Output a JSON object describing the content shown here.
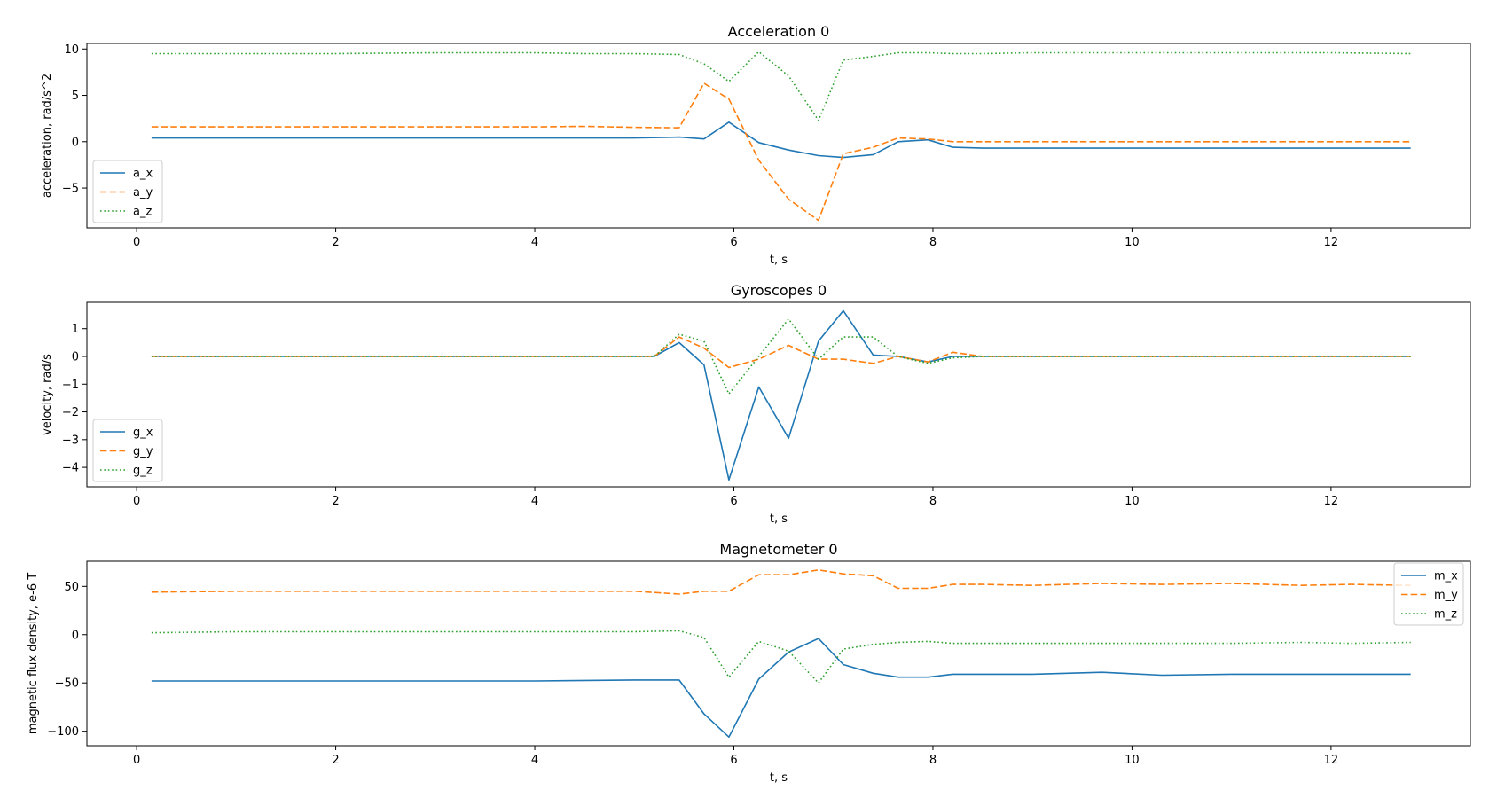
{
  "chart_data": [
    {
      "type": "line",
      "title": "Acceleration 0",
      "xlabel": "t, s",
      "ylabel": "acceleration, rad/s^2",
      "xlim": [
        -0.5,
        13.4
      ],
      "ylim": [
        -9.3,
        10.6
      ],
      "xticks": [
        0,
        2,
        4,
        6,
        8,
        10,
        12
      ],
      "yticks": [
        -5,
        0,
        5,
        10
      ],
      "legend": "lower-left",
      "series": [
        {
          "name": "a_x",
          "color": "#1f77b4",
          "dash": "solid",
          "x": [
            0.15,
            1.0,
            2.0,
            3.0,
            4.0,
            4.5,
            5.0,
            5.45,
            5.7,
            5.95,
            6.25,
            6.55,
            6.85,
            7.1,
            7.4,
            7.65,
            7.95,
            8.2,
            8.5,
            9.0,
            9.5,
            10.0,
            11.0,
            12.0,
            12.8
          ],
          "y": [
            0.4,
            0.4,
            0.4,
            0.4,
            0.4,
            0.4,
            0.4,
            0.5,
            0.3,
            2.1,
            -0.1,
            -0.9,
            -1.5,
            -1.7,
            -1.4,
            0.0,
            0.2,
            -0.6,
            -0.7,
            -0.7,
            -0.7,
            -0.7,
            -0.7,
            -0.7,
            -0.7
          ]
        },
        {
          "name": "a_y",
          "color": "#ff7f0e",
          "dash": "dashed",
          "x": [
            0.15,
            1.0,
            2.0,
            3.0,
            4.0,
            4.5,
            5.0,
            5.45,
            5.7,
            5.95,
            6.25,
            6.55,
            6.85,
            7.1,
            7.4,
            7.65,
            7.95,
            8.2,
            8.5,
            9.0,
            9.5,
            10.0,
            11.0,
            12.0,
            12.8
          ],
          "y": [
            1.6,
            1.6,
            1.6,
            1.6,
            1.6,
            1.65,
            1.55,
            1.5,
            6.3,
            4.6,
            -2.0,
            -6.2,
            -8.5,
            -1.3,
            -0.6,
            0.4,
            0.3,
            0.0,
            0.0,
            0.0,
            0.0,
            0.0,
            0.0,
            0.0,
            0.0
          ]
        },
        {
          "name": "a_z",
          "color": "#2ca02c",
          "dash": "dotted",
          "x": [
            0.15,
            1.0,
            2.0,
            3.0,
            4.0,
            4.5,
            5.0,
            5.45,
            5.7,
            5.95,
            6.25,
            6.55,
            6.85,
            7.1,
            7.4,
            7.65,
            7.95,
            8.2,
            8.5,
            9.0,
            9.5,
            10.0,
            11.0,
            12.0,
            12.8
          ],
          "y": [
            9.5,
            9.5,
            9.5,
            9.6,
            9.6,
            9.5,
            9.5,
            9.4,
            8.4,
            6.5,
            9.7,
            7.1,
            2.3,
            8.8,
            9.2,
            9.6,
            9.6,
            9.5,
            9.5,
            9.6,
            9.6,
            9.6,
            9.6,
            9.6,
            9.5
          ]
        }
      ]
    },
    {
      "type": "line",
      "title": "Gyroscopes 0",
      "xlabel": "t, s",
      "ylabel": "velocity, rad/s",
      "xlim": [
        -0.5,
        13.4
      ],
      "ylim": [
        -4.7,
        1.95
      ],
      "xticks": [
        0,
        2,
        4,
        6,
        8,
        10,
        12
      ],
      "yticks": [
        -4,
        -3,
        -2,
        -1,
        0,
        1
      ],
      "legend": "lower-left",
      "series": [
        {
          "name": "g_x",
          "color": "#1f77b4",
          "dash": "solid",
          "x": [
            0.15,
            1.0,
            2.0,
            3.0,
            4.0,
            5.0,
            5.2,
            5.45,
            5.7,
            5.95,
            6.25,
            6.55,
            6.85,
            7.1,
            7.4,
            7.65,
            7.95,
            8.2,
            8.5,
            9.0,
            10.0,
            11.0,
            12.0,
            12.8
          ],
          "y": [
            0.0,
            0.0,
            0.0,
            0.0,
            0.0,
            0.0,
            0.0,
            0.5,
            -0.3,
            -4.45,
            -1.1,
            -2.95,
            0.55,
            1.65,
            0.05,
            0.0,
            -0.2,
            0.0,
            0.0,
            0.0,
            0.0,
            0.0,
            0.0,
            0.0
          ]
        },
        {
          "name": "g_y",
          "color": "#ff7f0e",
          "dash": "dashed",
          "x": [
            0.15,
            1.0,
            2.0,
            3.0,
            4.0,
            5.0,
            5.2,
            5.45,
            5.7,
            5.95,
            6.25,
            6.55,
            6.85,
            7.1,
            7.4,
            7.65,
            7.95,
            8.2,
            8.5,
            9.0,
            10.0,
            11.0,
            12.0,
            12.8
          ],
          "y": [
            0.0,
            0.0,
            0.0,
            0.0,
            0.0,
            0.0,
            0.0,
            0.7,
            0.3,
            -0.4,
            -0.1,
            0.4,
            -0.1,
            -0.1,
            -0.25,
            0.0,
            -0.2,
            0.15,
            0.0,
            0.0,
            0.0,
            0.0,
            0.0,
            0.0
          ]
        },
        {
          "name": "g_z",
          "color": "#2ca02c",
          "dash": "dotted",
          "x": [
            0.15,
            1.0,
            2.0,
            3.0,
            4.0,
            5.0,
            5.2,
            5.45,
            5.7,
            5.95,
            6.25,
            6.55,
            6.85,
            7.1,
            7.4,
            7.65,
            7.95,
            8.2,
            8.5,
            9.0,
            10.0,
            11.0,
            12.0,
            12.8
          ],
          "y": [
            0.0,
            0.0,
            0.0,
            0.0,
            0.0,
            0.0,
            0.0,
            0.8,
            0.55,
            -1.35,
            0.0,
            1.35,
            -0.1,
            0.7,
            0.7,
            0.0,
            -0.25,
            -0.05,
            0.0,
            0.0,
            0.0,
            0.0,
            0.0,
            0.0
          ]
        }
      ]
    },
    {
      "type": "line",
      "title": "Magnetometer 0",
      "xlabel": "t, s",
      "ylabel": "magnetic flux density, e-6 T",
      "xlim": [
        -0.5,
        13.4
      ],
      "ylim": [
        -115,
        76
      ],
      "xticks": [
        0,
        2,
        4,
        6,
        8,
        10,
        12
      ],
      "yticks": [
        -100,
        -50,
        0,
        50
      ],
      "legend": "upper-right",
      "series": [
        {
          "name": "m_x",
          "color": "#1f77b4",
          "dash": "solid",
          "x": [
            0.15,
            1.0,
            2.0,
            3.0,
            4.0,
            5.0,
            5.45,
            5.7,
            5.95,
            6.25,
            6.55,
            6.85,
            7.1,
            7.4,
            7.65,
            7.95,
            8.2,
            8.5,
            9.0,
            9.7,
            10.3,
            11.0,
            11.7,
            12.2,
            12.8
          ],
          "y": [
            -48,
            -48,
            -48,
            -48,
            -48,
            -47,
            -47,
            -82,
            -106,
            -46,
            -18,
            -4,
            -31,
            -40,
            -44,
            -44,
            -41,
            -41,
            -41,
            -39,
            -42,
            -41,
            -41,
            -41,
            -41
          ]
        },
        {
          "name": "m_y",
          "color": "#ff7f0e",
          "dash": "dashed",
          "x": [
            0.15,
            1.0,
            2.0,
            3.0,
            4.0,
            5.0,
            5.45,
            5.7,
            5.95,
            6.25,
            6.55,
            6.85,
            7.1,
            7.4,
            7.65,
            7.95,
            8.2,
            8.5,
            9.0,
            9.7,
            10.3,
            11.0,
            11.7,
            12.2,
            12.8
          ],
          "y": [
            44,
            45,
            45,
            45,
            45,
            45,
            42,
            45,
            45,
            62,
            62,
            67,
            63,
            61,
            48,
            48,
            52,
            52,
            51,
            53,
            52,
            53,
            51,
            52,
            51
          ]
        },
        {
          "name": "m_z",
          "color": "#2ca02c",
          "dash": "dotted",
          "x": [
            0.15,
            1.0,
            2.0,
            3.0,
            4.0,
            5.0,
            5.45,
            5.7,
            5.95,
            6.25,
            6.55,
            6.85,
            7.1,
            7.4,
            7.65,
            7.95,
            8.2,
            8.5,
            9.0,
            9.7,
            10.3,
            11.0,
            11.7,
            12.2,
            12.8
          ],
          "y": [
            2,
            3,
            3,
            3,
            3,
            3,
            4,
            -3,
            -44,
            -7,
            -17,
            -50,
            -15,
            -10,
            -8,
            -7,
            -9,
            -9,
            -9,
            -9,
            -9,
            -9,
            -8,
            -9,
            -8
          ]
        }
      ]
    }
  ]
}
